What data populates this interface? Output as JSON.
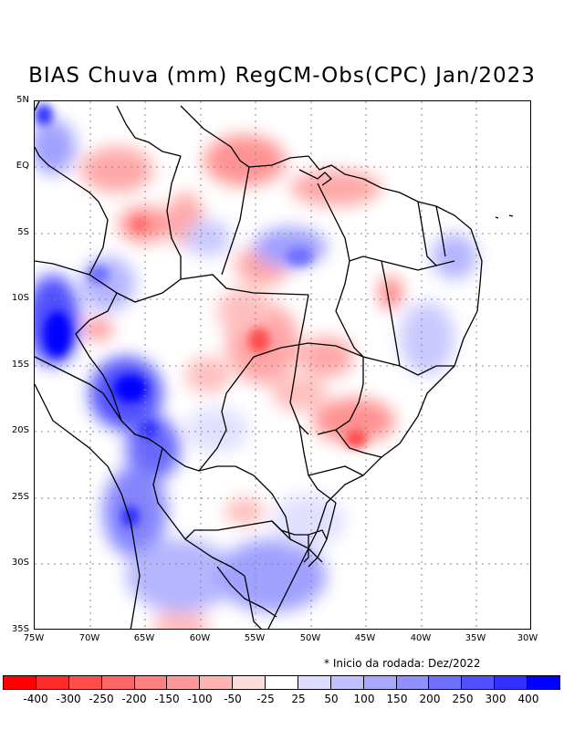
{
  "title": "BIAS Chuva (mm) RegCM-Obs(CPC) Jan/2023",
  "lat_labels": [
    "5N",
    "EQ",
    "5S",
    "10S",
    "15S",
    "20S",
    "25S",
    "30S",
    "35S"
  ],
  "lon_labels": [
    "75W",
    "70W",
    "65W",
    "60W",
    "55W",
    "50W",
    "45W",
    "40W",
    "35W",
    "30W"
  ],
  "note": "* Inicio da rodada: Dez/2022",
  "colorbar": {
    "colors": [
      "#ff0000",
      "#ff2a2a",
      "#ff4d4d",
      "#ff6666",
      "#ff8080",
      "#ff9999",
      "#ffb3b3",
      "#ffdcdc",
      "#ffffff",
      "#dcdcff",
      "#c0c0ff",
      "#a8a8ff",
      "#9090ff",
      "#7070ff",
      "#5050ff",
      "#3030ff",
      "#0000ff"
    ],
    "labels": [
      "-400",
      "-300",
      "-250",
      "-200",
      "-150",
      "-100",
      "-50",
      "-25",
      "25",
      "50",
      "100",
      "150",
      "200",
      "250",
      "300",
      "400"
    ]
  }
}
